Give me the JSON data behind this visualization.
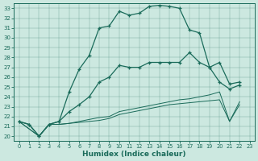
{
  "xlabel": "Humidex (Indice chaleur)",
  "background_color": "#cce8e0",
  "line_color": "#1a6b5a",
  "xlim": [
    -0.5,
    23.5
  ],
  "ylim": [
    19.5,
    33.5
  ],
  "xticks": [
    0,
    1,
    2,
    3,
    4,
    5,
    6,
    7,
    8,
    9,
    10,
    11,
    12,
    13,
    14,
    15,
    16,
    17,
    18,
    19,
    20,
    21,
    22,
    23
  ],
  "yticks": [
    20,
    21,
    22,
    23,
    24,
    25,
    26,
    27,
    28,
    29,
    30,
    31,
    32,
    33
  ],
  "line1_x": [
    0,
    1,
    2,
    3,
    4,
    5,
    6,
    7,
    8,
    9,
    10,
    11,
    12,
    13,
    14,
    15,
    16,
    17,
    18,
    19,
    20,
    21,
    22
  ],
  "line1_y": [
    21.5,
    21.2,
    20.0,
    21.2,
    21.5,
    24.5,
    26.8,
    28.2,
    31.0,
    31.2,
    32.7,
    32.3,
    32.5,
    33.2,
    33.3,
    33.2,
    33.0,
    30.8,
    30.5,
    27.0,
    25.5,
    24.8,
    25.2
  ],
  "line2_x": [
    0,
    1,
    2,
    3,
    4,
    5,
    6,
    7,
    8,
    9,
    10,
    11,
    12,
    13,
    14,
    15,
    16,
    17,
    18,
    19,
    20,
    21,
    22
  ],
  "line2_y": [
    21.5,
    21.2,
    20.0,
    21.2,
    21.5,
    22.5,
    23.2,
    24.0,
    25.5,
    26.0,
    27.2,
    27.0,
    27.0,
    27.5,
    27.5,
    27.5,
    27.5,
    28.5,
    27.5,
    27.0,
    27.5,
    25.3,
    25.5
  ],
  "line3_x": [
    0,
    2,
    3,
    4,
    5,
    6,
    7,
    8,
    9,
    10,
    11,
    12,
    13,
    14,
    15,
    16,
    17,
    18,
    19,
    20,
    21,
    22
  ],
  "line3_y": [
    21.5,
    20.0,
    21.2,
    21.2,
    21.3,
    21.4,
    21.5,
    21.6,
    21.8,
    22.2,
    22.4,
    22.6,
    22.8,
    23.0,
    23.2,
    23.3,
    23.4,
    23.5,
    23.6,
    23.7,
    21.5,
    23.2
  ],
  "line4_x": [
    0,
    2,
    3,
    4,
    5,
    6,
    7,
    8,
    9,
    10,
    11,
    12,
    13,
    14,
    15,
    16,
    17,
    18,
    19,
    20,
    21,
    22
  ],
  "line4_y": [
    21.5,
    20.0,
    21.2,
    21.2,
    21.3,
    21.5,
    21.7,
    21.9,
    22.0,
    22.5,
    22.7,
    22.9,
    23.1,
    23.3,
    23.5,
    23.7,
    23.8,
    24.0,
    24.2,
    24.5,
    21.5,
    23.5
  ]
}
